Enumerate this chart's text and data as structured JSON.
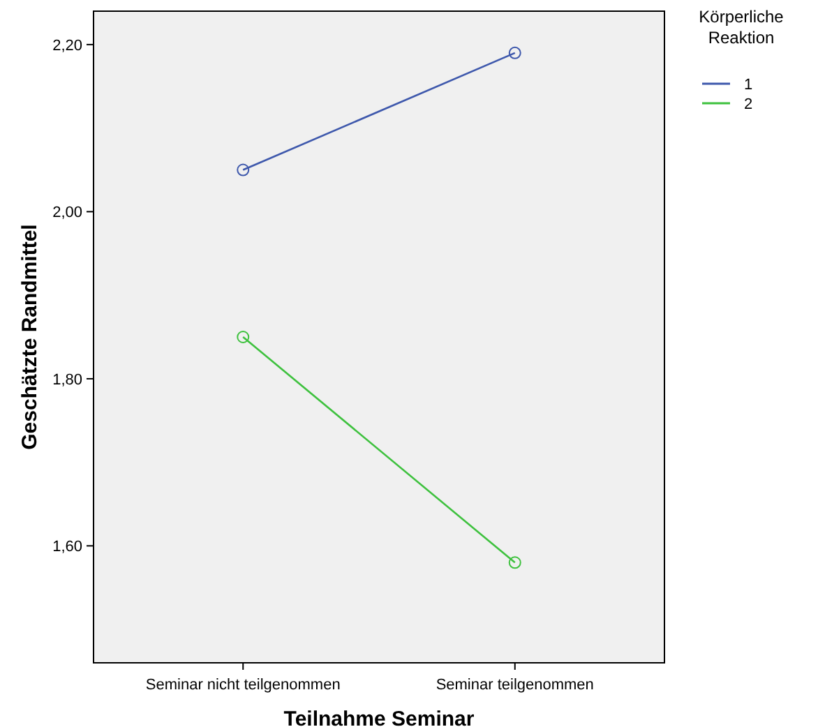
{
  "chart_data": {
    "type": "line",
    "xlabel": "Teilnahme Seminar",
    "ylabel": "Geschätzte Randmittel",
    "legend_title": "Körperliche Reaktion",
    "categories": [
      "Seminar nicht teilgenommen",
      "Seminar teilgenommen"
    ],
    "series": [
      {
        "name": "1",
        "color": "#3e58ac",
        "values": [
          2.05,
          2.19
        ]
      },
      {
        "name": "2",
        "color": "#3ec13e",
        "values": [
          1.85,
          1.58
        ]
      }
    ],
    "ylim": [
      1.46,
      2.24
    ],
    "yticks": [
      {
        "value": 1.6,
        "label": "1,60"
      },
      {
        "value": 1.8,
        "label": "1,80"
      },
      {
        "value": 2.0,
        "label": "2,00"
      },
      {
        "value": 2.2,
        "label": "2,20"
      }
    ],
    "marker": "circle",
    "legend": "top right",
    "grid": false
  }
}
